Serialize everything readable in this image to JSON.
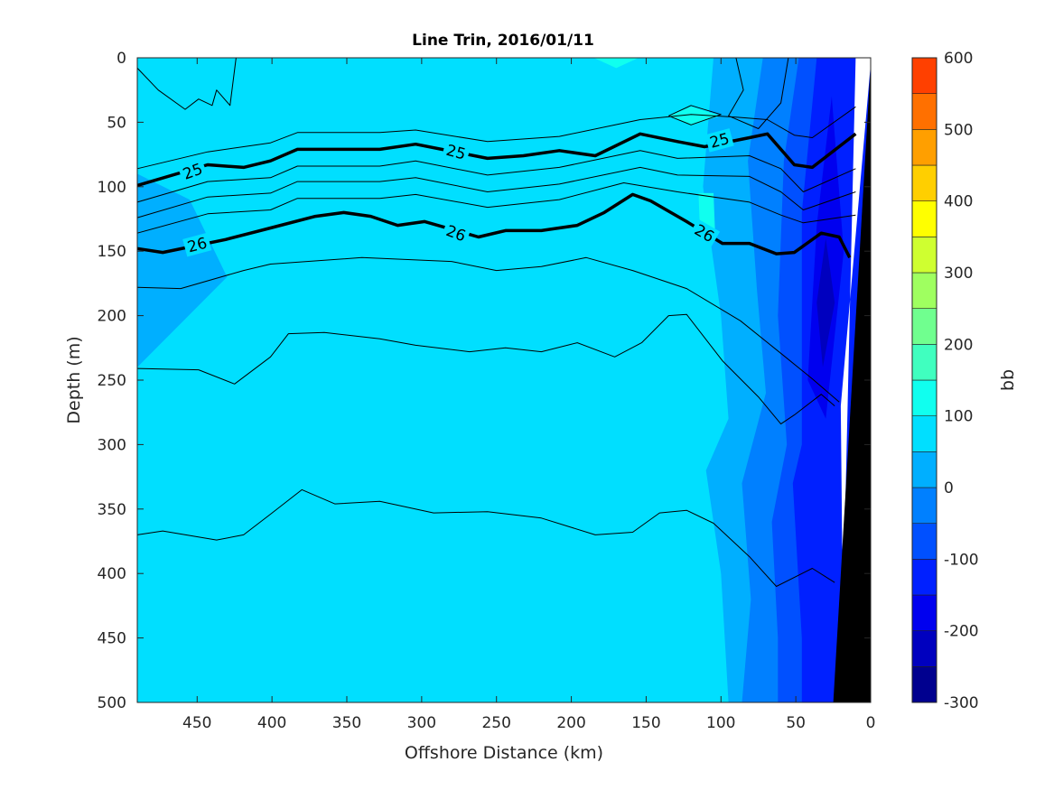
{
  "chart_data": {
    "type": "contour",
    "title": "Line Trin, 2016/01/11",
    "xlabel": "Offshore Distance (km)",
    "ylabel": "Depth (m)",
    "xlim": [
      490,
      0
    ],
    "ylim": [
      0,
      500
    ],
    "x_reversed": true,
    "y_reversed": true,
    "xticks": [
      450,
      400,
      350,
      300,
      250,
      200,
      150,
      100,
      50,
      0
    ],
    "yticks": [
      0,
      50,
      100,
      150,
      200,
      250,
      300,
      350,
      400,
      450,
      500
    ],
    "colorbar": {
      "label": "bb",
      "range": [
        -300,
        600
      ],
      "ticks": [
        600,
        500,
        400,
        300,
        200,
        100,
        0,
        -100,
        -200,
        -300
      ],
      "levels": [
        -300,
        -250,
        -200,
        -150,
        -100,
        -50,
        0,
        50,
        100,
        150,
        200,
        250,
        300,
        350,
        400,
        450,
        500,
        550,
        600
      ],
      "colors": [
        "#00008F",
        "#0000BF",
        "#0000EF",
        "#0020FF",
        "#0050FF",
        "#0080FF",
        "#00AFFF",
        "#00DFFF",
        "#10FFEF",
        "#40FFBF",
        "#70FF8F",
        "#9FFF60",
        "#CFFF30",
        "#FFFF00",
        "#FFCF00",
        "#FF9F00",
        "#FF7000",
        "#FF4000"
      ]
    },
    "background_level": 75,
    "filled_regions": [
      {
        "level": 25,
        "points": [
          [
            490,
            90
          ],
          [
            455,
            110
          ],
          [
            430,
            170
          ],
          [
            460,
            205
          ],
          [
            490,
            240
          ]
        ]
      },
      {
        "level": 25,
        "points": [
          [
            105,
            0
          ],
          [
            112,
            100
          ],
          [
            100,
            200
          ],
          [
            95,
            280
          ],
          [
            110,
            320
          ],
          [
            100,
            400
          ],
          [
            95,
            500
          ],
          [
            0,
            500
          ],
          [
            0,
            0
          ]
        ]
      },
      {
        "level": -25,
        "points": [
          [
            72,
            0
          ],
          [
            82,
            80
          ],
          [
            76,
            180
          ],
          [
            70,
            260
          ],
          [
            86,
            330
          ],
          [
            80,
            420
          ],
          [
            86,
            500
          ],
          [
            0,
            500
          ],
          [
            0,
            0
          ]
        ]
      },
      {
        "level": -75,
        "points": [
          [
            48,
            0
          ],
          [
            58,
            80
          ],
          [
            62,
            200
          ],
          [
            56,
            300
          ],
          [
            66,
            360
          ],
          [
            62,
            450
          ],
          [
            62,
            500
          ],
          [
            0,
            500
          ],
          [
            0,
            0
          ]
        ]
      },
      {
        "level": -125,
        "points": [
          [
            36,
            0
          ],
          [
            46,
            120
          ],
          [
            46,
            300
          ],
          [
            52,
            330
          ],
          [
            46,
            450
          ],
          [
            46,
            500
          ],
          [
            0,
            500
          ],
          [
            0,
            0
          ]
        ]
      },
      {
        "level": -175,
        "points": [
          [
            26,
            30
          ],
          [
            36,
            130
          ],
          [
            42,
            250
          ],
          [
            30,
            280
          ],
          [
            18,
            150
          ]
        ]
      },
      {
        "level": -225,
        "points": [
          [
            30,
            140
          ],
          [
            36,
            190
          ],
          [
            32,
            240
          ],
          [
            24,
            190
          ]
        ]
      },
      {
        "level": 125,
        "points": [
          [
            185,
            0
          ],
          [
            170,
            8
          ],
          [
            155,
            0
          ]
        ]
      },
      {
        "level": 125,
        "points": [
          [
            135,
            45
          ],
          [
            120,
            38
          ],
          [
            100,
            45
          ],
          [
            120,
            52
          ]
        ]
      },
      {
        "level": 125,
        "points": [
          [
            115,
            105
          ],
          [
            105,
            105
          ],
          [
            104,
            135
          ],
          [
            114,
            135
          ]
        ]
      }
    ],
    "contours": [
      {
        "value": 25,
        "bold": true,
        "points": [
          [
            490,
            99
          ],
          [
            443,
            83
          ],
          [
            419,
            85
          ],
          [
            401,
            80
          ],
          [
            383,
            71
          ],
          [
            358,
            71
          ],
          [
            328,
            71
          ],
          [
            304,
            67
          ],
          [
            256,
            78
          ],
          [
            232,
            76
          ],
          [
            208,
            72
          ],
          [
            184,
            76
          ],
          [
            154,
            59
          ],
          [
            129,
            65
          ],
          [
            111,
            69
          ],
          [
            81,
            62
          ],
          [
            69,
            59
          ],
          [
            51,
            83
          ],
          [
            39,
            85
          ],
          [
            10,
            59
          ]
        ]
      },
      {
        "value": 26,
        "bold": true,
        "points": [
          [
            490,
            148
          ],
          [
            473,
            151
          ],
          [
            431,
            141
          ],
          [
            401,
            132
          ],
          [
            371,
            123
          ],
          [
            352,
            120
          ],
          [
            334,
            123
          ],
          [
            316,
            130
          ],
          [
            298,
            127
          ],
          [
            262,
            139
          ],
          [
            244,
            134
          ],
          [
            220,
            134
          ],
          [
            196,
            130
          ],
          [
            178,
            120
          ],
          [
            159,
            106
          ],
          [
            147,
            111
          ],
          [
            123,
            127
          ],
          [
            99,
            144
          ],
          [
            81,
            144
          ],
          [
            63,
            152
          ],
          [
            51,
            151
          ],
          [
            33,
            136
          ],
          [
            21,
            139
          ],
          [
            14,
            155
          ]
        ]
      },
      {
        "value": null,
        "bold": false,
        "points": [
          [
            490,
            86
          ],
          [
            443,
            73
          ],
          [
            401,
            66
          ],
          [
            383,
            58
          ],
          [
            328,
            58
          ],
          [
            304,
            56
          ],
          [
            256,
            65
          ],
          [
            208,
            61
          ],
          [
            154,
            48
          ],
          [
            120,
            44
          ],
          [
            90,
            46
          ],
          [
            69,
            48
          ],
          [
            51,
            60
          ],
          [
            39,
            62
          ],
          [
            10,
            38
          ]
        ]
      },
      {
        "value": null,
        "bold": false,
        "points": [
          [
            490,
            112
          ],
          [
            443,
            96
          ],
          [
            401,
            93
          ],
          [
            383,
            84
          ],
          [
            328,
            84
          ],
          [
            304,
            80
          ],
          [
            256,
            91
          ],
          [
            208,
            85
          ],
          [
            154,
            72
          ],
          [
            129,
            78
          ],
          [
            81,
            76
          ],
          [
            60,
            86
          ],
          [
            45,
            104
          ],
          [
            10,
            86
          ]
        ]
      },
      {
        "value": null,
        "bold": false,
        "points": [
          [
            490,
            124
          ],
          [
            443,
            108
          ],
          [
            401,
            105
          ],
          [
            383,
            96
          ],
          [
            328,
            96
          ],
          [
            304,
            93
          ],
          [
            256,
            104
          ],
          [
            208,
            98
          ],
          [
            154,
            85
          ],
          [
            129,
            91
          ],
          [
            81,
            92
          ],
          [
            60,
            104
          ],
          [
            45,
            118
          ],
          [
            10,
            104
          ]
        ]
      },
      {
        "value": null,
        "bold": false,
        "points": [
          [
            490,
            136
          ],
          [
            443,
            121
          ],
          [
            401,
            118
          ],
          [
            383,
            109
          ],
          [
            328,
            109
          ],
          [
            304,
            106
          ],
          [
            256,
            116
          ],
          [
            208,
            110
          ],
          [
            165,
            97
          ],
          [
            129,
            104
          ],
          [
            81,
            112
          ],
          [
            60,
            122
          ],
          [
            45,
            128
          ],
          [
            10,
            122
          ]
        ]
      },
      {
        "value": null,
        "bold": false,
        "points": [
          [
            490,
            178
          ],
          [
            461,
            179
          ],
          [
            419,
            165
          ],
          [
            401,
            160
          ],
          [
            340,
            155
          ],
          [
            280,
            158
          ],
          [
            250,
            165
          ],
          [
            220,
            162
          ],
          [
            190,
            155
          ],
          [
            159,
            165
          ],
          [
            123,
            179
          ],
          [
            87,
            204
          ],
          [
            57,
            232
          ],
          [
            39,
            249
          ],
          [
            21,
            267
          ]
        ]
      },
      {
        "value": null,
        "bold": false,
        "points": [
          [
            490,
            241
          ],
          [
            449,
            242
          ],
          [
            425,
            253
          ],
          [
            401,
            232
          ],
          [
            389,
            214
          ],
          [
            365,
            213
          ],
          [
            328,
            218
          ],
          [
            304,
            223
          ],
          [
            268,
            228
          ],
          [
            244,
            225
          ],
          [
            220,
            228
          ],
          [
            196,
            221
          ],
          [
            171,
            232
          ],
          [
            153,
            221
          ],
          [
            135,
            200
          ],
          [
            123,
            199
          ],
          [
            99,
            235
          ],
          [
            75,
            263
          ],
          [
            60,
            284
          ],
          [
            51,
            277
          ],
          [
            33,
            261
          ],
          [
            24,
            270
          ]
        ]
      },
      {
        "value": null,
        "bold": false,
        "points": [
          [
            490,
            370
          ],
          [
            473,
            367
          ],
          [
            437,
            374
          ],
          [
            419,
            370
          ],
          [
            401,
            354
          ],
          [
            380,
            335
          ],
          [
            358,
            346
          ],
          [
            328,
            344
          ],
          [
            292,
            353
          ],
          [
            256,
            352
          ],
          [
            220,
            357
          ],
          [
            184,
            370
          ],
          [
            159,
            368
          ],
          [
            141,
            353
          ],
          [
            123,
            351
          ],
          [
            105,
            361
          ],
          [
            81,
            387
          ],
          [
            63,
            410
          ],
          [
            39,
            396
          ],
          [
            24,
            407
          ]
        ]
      },
      {
        "value": null,
        "bold": false,
        "points": [
          [
            490,
            8
          ],
          [
            476,
            25
          ],
          [
            458,
            40
          ],
          [
            449,
            32
          ],
          [
            440,
            37
          ],
          [
            437,
            25
          ],
          [
            428,
            37
          ],
          [
            424,
            0
          ]
        ]
      },
      {
        "value": null,
        "bold": false,
        "points": [
          [
            135,
            45
          ],
          [
            120,
            37
          ],
          [
            100,
            44
          ],
          [
            120,
            52
          ],
          [
            135,
            45
          ]
        ]
      },
      {
        "value": null,
        "bold": false,
        "points": [
          [
            90,
            0
          ],
          [
            85,
            25
          ],
          [
            95,
            45
          ],
          [
            75,
            55
          ],
          [
            60,
            35
          ],
          [
            55,
            0
          ]
        ]
      }
    ],
    "contour_labels": [
      {
        "text": "25",
        "x": 453,
        "y": 88,
        "angle": -20
      },
      {
        "text": "25",
        "x": 277,
        "y": 73,
        "angle": 15
      },
      {
        "text": "25",
        "x": 101,
        "y": 64,
        "angle": -15
      },
      {
        "text": "26",
        "x": 450,
        "y": 145,
        "angle": -15
      },
      {
        "text": "26",
        "x": 277,
        "y": 136,
        "angle": 20
      },
      {
        "text": "26",
        "x": 111,
        "y": 136,
        "angle": 30
      }
    ],
    "no_data_region": [
      [
        10,
        0
      ],
      [
        0,
        0
      ],
      [
        0,
        5
      ],
      [
        20,
        270
      ],
      [
        18,
        500
      ],
      [
        20,
        500
      ]
    ],
    "bathymetry": [
      [
        0,
        5
      ],
      [
        0,
        500
      ],
      [
        25,
        500
      ]
    ]
  }
}
